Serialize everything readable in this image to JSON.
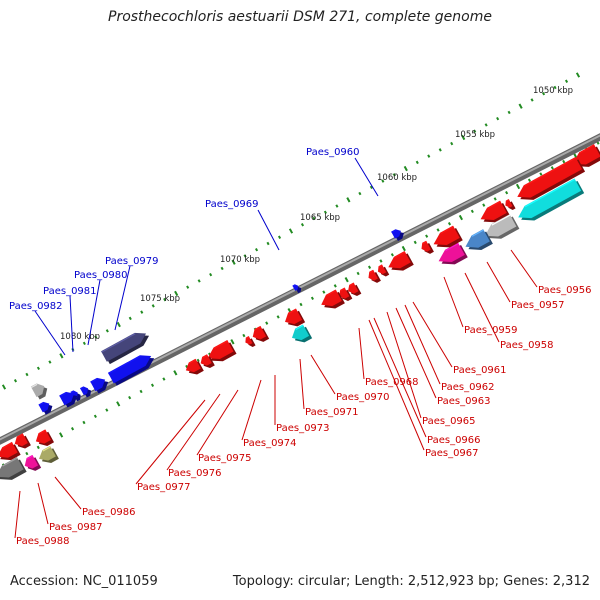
{
  "title": "Prosthecochloris aestuarii DSM 271, complete genome",
  "footer": {
    "accession": "Accession: NC_011059",
    "stats": "Topology: circular; Length: 2,512,923 bp; Genes: 2,312"
  },
  "colors": {
    "forward_label": "#0000cc",
    "reverse_label": "#cc0000",
    "backbone": "#808080",
    "tick": "#228b22"
  },
  "scale_labels": [
    "1050 kbp",
    "1055 kbp",
    "1060 kbp",
    "1065 kbp",
    "1070 kbp",
    "1075 kbp",
    "1080 kbp"
  ],
  "forward_labels": [
    "Paes_0960",
    "Paes_0969",
    "Paes_0979",
    "Paes_0980",
    "Paes_0981",
    "Paes_0982"
  ],
  "reverse_labels": [
    "Paes_0956",
    "Paes_0957",
    "Paes_0958",
    "Paes_0959",
    "Paes_0961",
    "Paes_0962",
    "Paes_0963",
    "Paes_0965",
    "Paes_0966",
    "Paes_0967",
    "Paes_0968",
    "Paes_0970",
    "Paes_0971",
    "Paes_0973",
    "Paes_0974",
    "Paes_0975",
    "Paes_0976",
    "Paes_0977",
    "Paes_0986",
    "Paes_0987",
    "Paes_0988"
  ]
}
